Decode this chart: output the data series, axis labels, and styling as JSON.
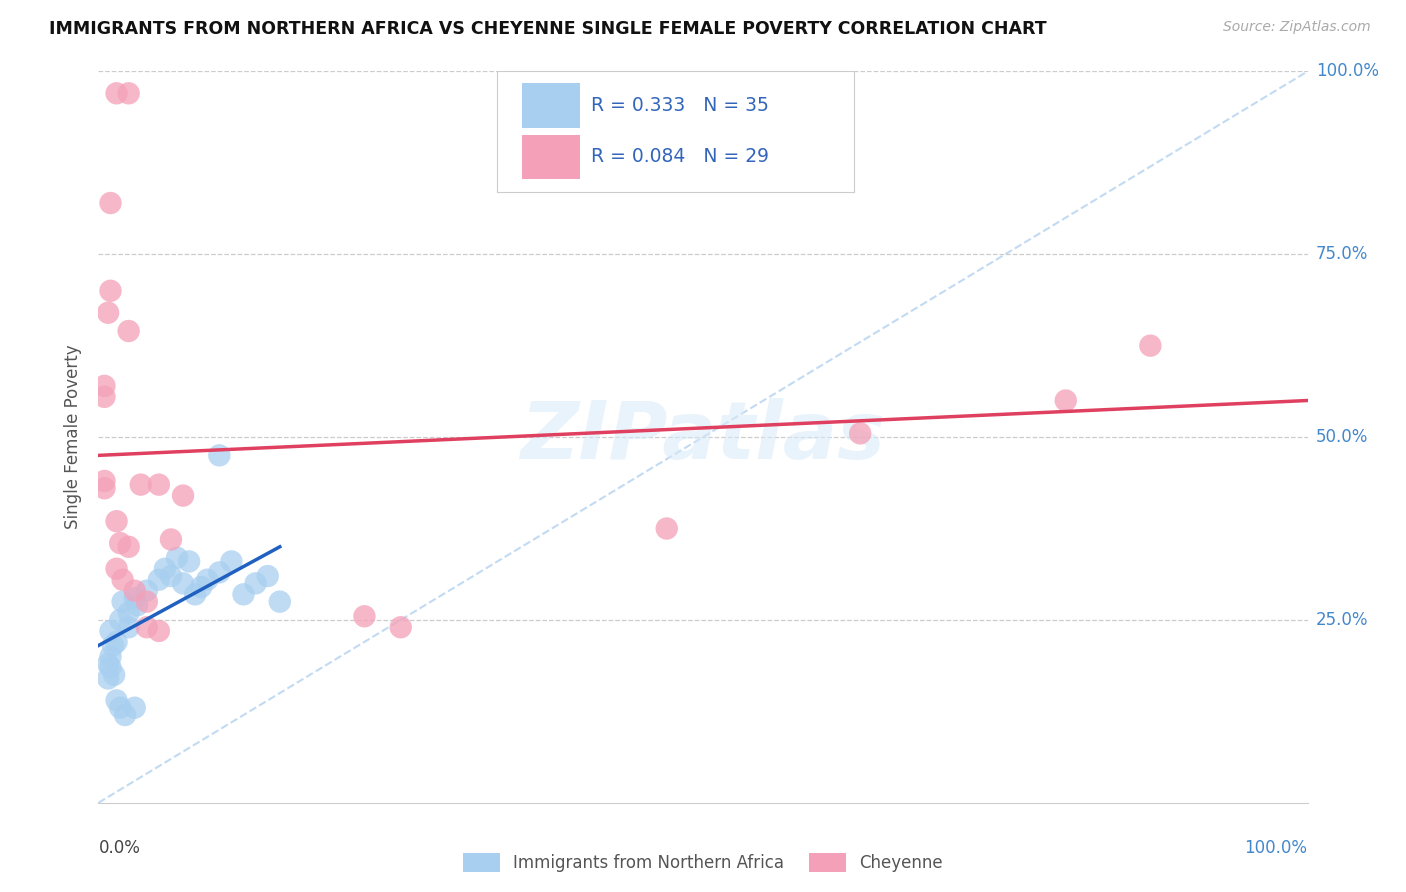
{
  "title": "IMMIGRANTS FROM NORTHERN AFRICA VS CHEYENNE SINGLE FEMALE POVERTY CORRELATION CHART",
  "source": "Source: ZipAtlas.com",
  "ylabel": "Single Female Poverty",
  "R1": 0.333,
  "N1": 35,
  "R2": 0.084,
  "N2": 29,
  "color_blue": "#a8cff0",
  "color_pink": "#f4a0b8",
  "color_blue_line": "#2060c0",
  "color_pink_line": "#e04060",
  "color_diagonal": "#b8d4f0",
  "legend_label1": "Immigrants from Northern Africa",
  "legend_label2": "Cheyenne",
  "blue_dots": [
    [
      1.0,
      20.0
    ],
    [
      1.2,
      21.5
    ],
    [
      1.5,
      22.0
    ],
    [
      0.8,
      19.0
    ],
    [
      1.0,
      18.5
    ],
    [
      1.3,
      17.5
    ],
    [
      2.0,
      27.5
    ],
    [
      2.5,
      26.0
    ],
    [
      3.0,
      28.0
    ],
    [
      1.8,
      25.0
    ],
    [
      1.0,
      23.5
    ],
    [
      2.5,
      24.0
    ],
    [
      0.8,
      17.0
    ],
    [
      3.2,
      27.0
    ],
    [
      4.0,
      29.0
    ],
    [
      5.0,
      30.5
    ],
    [
      5.5,
      32.0
    ],
    [
      6.0,
      31.0
    ],
    [
      6.5,
      33.5
    ],
    [
      7.5,
      33.0
    ],
    [
      7.0,
      30.0
    ],
    [
      8.0,
      28.5
    ],
    [
      8.5,
      29.5
    ],
    [
      9.0,
      30.5
    ],
    [
      10.0,
      31.5
    ],
    [
      11.0,
      33.0
    ],
    [
      12.0,
      28.5
    ],
    [
      13.0,
      30.0
    ],
    [
      14.0,
      31.0
    ],
    [
      15.0,
      27.5
    ],
    [
      10.0,
      47.5
    ],
    [
      1.5,
      14.0
    ],
    [
      1.8,
      13.0
    ],
    [
      2.2,
      12.0
    ],
    [
      3.0,
      13.0
    ]
  ],
  "pink_dots": [
    [
      1.5,
      97.0
    ],
    [
      2.5,
      97.0
    ],
    [
      1.0,
      82.0
    ],
    [
      1.0,
      70.0
    ],
    [
      0.8,
      67.0
    ],
    [
      2.5,
      64.5
    ],
    [
      0.5,
      57.0
    ],
    [
      0.5,
      55.5
    ],
    [
      0.5,
      44.0
    ],
    [
      0.5,
      43.0
    ],
    [
      3.5,
      43.5
    ],
    [
      1.5,
      38.5
    ],
    [
      1.8,
      35.5
    ],
    [
      2.5,
      35.0
    ],
    [
      1.5,
      32.0
    ],
    [
      2.0,
      30.5
    ],
    [
      3.0,
      29.0
    ],
    [
      4.0,
      27.5
    ],
    [
      5.0,
      43.5
    ],
    [
      7.0,
      42.0
    ],
    [
      6.0,
      36.0
    ],
    [
      4.0,
      24.0
    ],
    [
      5.0,
      23.5
    ],
    [
      22.0,
      25.5
    ],
    [
      25.0,
      24.0
    ],
    [
      47.0,
      37.5
    ],
    [
      63.0,
      50.5
    ],
    [
      80.0,
      55.0
    ],
    [
      87.0,
      62.5
    ]
  ],
  "blue_line_x": [
    0.0,
    15.0
  ],
  "blue_line_y": [
    21.5,
    35.0
  ],
  "pink_line_x": [
    0.0,
    100.0
  ],
  "pink_line_y": [
    47.5,
    55.0
  ],
  "ytick_values": [
    25.0,
    50.0,
    75.0,
    100.0
  ],
  "ytick_labels": [
    "25.0%",
    "50.0%",
    "75.0%",
    "100.0%"
  ],
  "xlim": [
    0,
    100
  ],
  "ylim": [
    0,
    100
  ]
}
